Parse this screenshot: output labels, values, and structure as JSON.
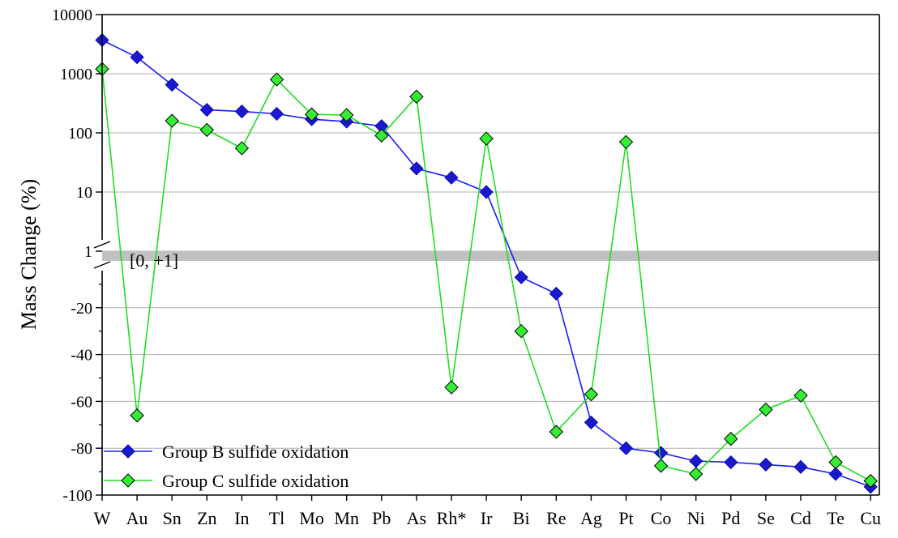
{
  "chart_data": {
    "type": "line",
    "ylabel": "Mass Change (%)",
    "band_label": "[0, +1]",
    "y_upper_scale": "log",
    "y_upper_ticks": [
      "10000",
      "1000",
      "100",
      "10",
      "1"
    ],
    "y_upper_tick_values": [
      10000,
      1000,
      100,
      10,
      1
    ],
    "y_lower_scale": "linear",
    "y_lower_ticks": [
      "-20",
      "-40",
      "-60",
      "-80",
      "-100"
    ],
    "y_lower_tick_values": [
      -20,
      -40,
      -60,
      -80,
      -100
    ],
    "ylim_upper": [
      1,
      10000
    ],
    "ylim_lower": [
      -100,
      0
    ],
    "grid": true,
    "legend_position": "bottom-left",
    "categories": [
      "W",
      "Au",
      "Sn",
      "Zn",
      "In",
      "Tl",
      "Mo",
      "Mn",
      "Pb",
      "As",
      "Rh*",
      "Ir",
      "Bi",
      "Re",
      "Ag",
      "Pt",
      "Co",
      "Ni",
      "Pd",
      "Se",
      "Cd",
      "Te",
      "Cu"
    ],
    "series": [
      {
        "name": "Group B sulfide oxidation",
        "line_color": "#1a1aff",
        "marker_color": "#1a1acc",
        "marker": "diamond",
        "values": [
          3700,
          1900,
          650,
          245,
          230,
          210,
          170,
          155,
          130,
          25,
          17.5,
          10,
          -7,
          -14,
          -69,
          -80,
          -82,
          -85.5,
          -86,
          -87,
          -88,
          -91,
          -96.5
        ]
      },
      {
        "name": "Group C sulfide oxidation",
        "line_color": "#22dd22",
        "marker_color": "#33ee33",
        "marker": "diamond",
        "values": [
          1200,
          -66,
          160,
          112,
          55,
          800,
          205,
          200,
          90,
          410,
          -54,
          80,
          -30,
          -73,
          -57,
          70,
          -87.5,
          -91,
          -76,
          -63.5,
          -57.5,
          -86,
          -94
        ]
      }
    ]
  }
}
